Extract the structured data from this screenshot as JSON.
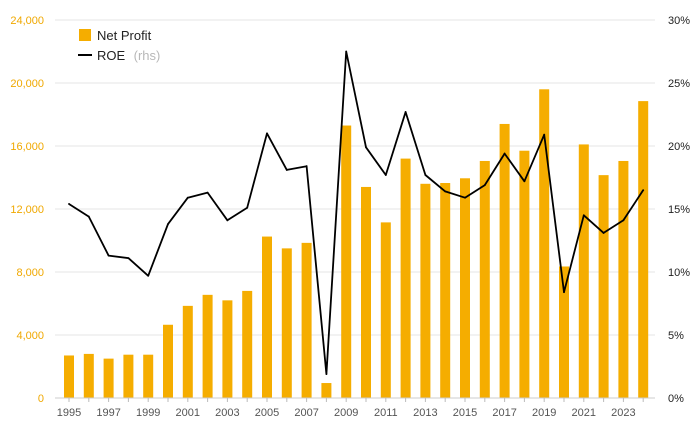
{
  "chart_data": {
    "type": "bar+line",
    "x": [
      1995,
      1996,
      1997,
      1998,
      1999,
      2000,
      2001,
      2002,
      2003,
      2004,
      2005,
      2006,
      2007,
      2008,
      2009,
      2010,
      2011,
      2012,
      2013,
      2014,
      2015,
      2016,
      2017,
      2018,
      2019,
      2020,
      2021,
      2022,
      2023,
      2024
    ],
    "x_tick_labels": [
      "1995",
      "1997",
      "1999",
      "2001",
      "2003",
      "2005",
      "2007",
      "2009",
      "2011",
      "2013",
      "2015",
      "2017",
      "2019",
      "2021",
      "2023"
    ],
    "series": [
      {
        "name": "Net Profit",
        "kind": "bar",
        "axis": "left",
        "color": "#f5ad00",
        "values": [
          2700,
          2800,
          2500,
          2750,
          2750,
          4650,
          5850,
          6550,
          6200,
          6800,
          10250,
          9500,
          9850,
          950,
          17300,
          13400,
          11150,
          15200,
          13600,
          13650,
          13950,
          15050,
          17400,
          15700,
          19600,
          8350,
          16100,
          14150,
          15050,
          18850
        ]
      },
      {
        "name": "ROE",
        "name_suffix": "(rhs)",
        "kind": "line",
        "axis": "right",
        "color": "#000000",
        "values": [
          15.4,
          14.4,
          11.3,
          11.1,
          9.7,
          13.8,
          15.9,
          16.3,
          14.1,
          15.1,
          21.0,
          18.1,
          18.4,
          1.9,
          27.5,
          19.9,
          17.7,
          22.7,
          17.7,
          16.4,
          15.9,
          16.9,
          19.4,
          17.2,
          20.9,
          8.4,
          14.5,
          13.1,
          14.1,
          16.5
        ]
      }
    ],
    "y_left": {
      "min": 0,
      "max": 24000,
      "ticks": [
        "0",
        "4,000",
        "8,000",
        "12,000",
        "16,000",
        "20,000",
        "24,000"
      ],
      "tick_values": [
        0,
        4000,
        8000,
        12000,
        16000,
        20000,
        24000
      ]
    },
    "y_right": {
      "min": 0,
      "max": 30,
      "ticks": [
        "0%",
        "5%",
        "10%",
        "15%",
        "20%",
        "25%",
        "30%"
      ],
      "tick_values": [
        0,
        5,
        10,
        15,
        20,
        25,
        30
      ]
    },
    "legend": {
      "position": "top-left",
      "entries": [
        "Net Profit",
        "ROE"
      ],
      "roe_suffix": "(rhs)"
    },
    "grid": "horizontal",
    "colors": {
      "grid": "#e6e6e6",
      "left_axis_text": "#f0a800",
      "right_axis_text": "#222222",
      "x_axis_text": "#555555"
    }
  }
}
